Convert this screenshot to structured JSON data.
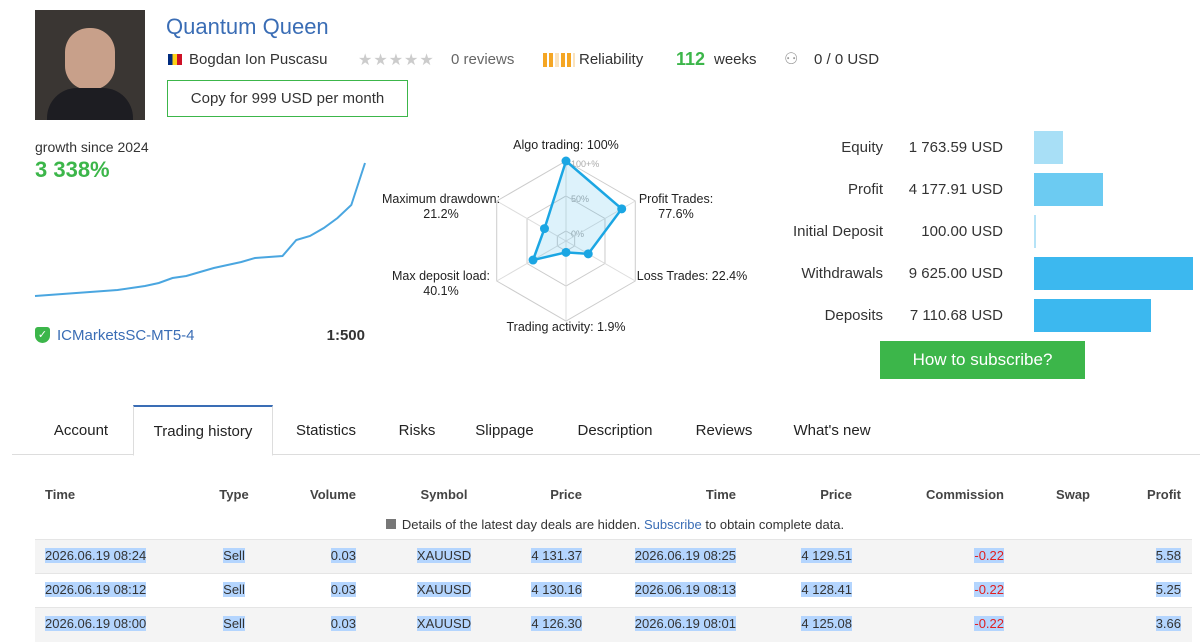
{
  "header": {
    "title": "Quantum Queen",
    "author": "Bogdan Ion Puscasu",
    "reviews": "0 reviews",
    "reliability": "Reliability",
    "weeks_value": "112",
    "weeks_label": "weeks",
    "subscribers": "0 / 0 USD",
    "copy_button": "Copy for 999 USD per month"
  },
  "growth": {
    "label": "growth since 2024",
    "value": "3 338%",
    "curve": [
      0,
      25,
      50,
      75,
      100,
      125,
      150,
      200,
      251,
      326,
      452,
      502,
      602,
      703,
      778,
      853,
      954,
      979,
      1004,
      1406,
      1506,
      1707,
      1958,
      2284,
      3338
    ],
    "server": "ICMarketsSC-MT5-4",
    "leverage": "1:500"
  },
  "radar": {
    "rings": [
      {
        "value": 0,
        "label": "0%"
      },
      {
        "value": 50,
        "label": "50%"
      },
      {
        "value": 100,
        "label": "100+%"
      }
    ],
    "axes": [
      {
        "label": "Algo trading: 100%",
        "value": 100
      },
      {
        "label": "Profit Trades: 77.6%",
        "value": 77.6
      },
      {
        "label": "Loss Trades: 22.4%",
        "value": 22.4
      },
      {
        "label": "Trading activity: 1.9%",
        "value": 1.9
      },
      {
        "label": "Max deposit load: 40.1%",
        "value": 40.1
      },
      {
        "label": "Maximum drawdown: 21.2%",
        "value": 21.2
      }
    ]
  },
  "balance": {
    "items": [
      {
        "label": "Equity",
        "value": 1763.59,
        "value_label": "1 763.59 USD"
      },
      {
        "label": "Profit",
        "value": 4177.91,
        "value_label": "4 177.91 USD"
      },
      {
        "label": "Initial Deposit",
        "value": 100,
        "value_label": "100.00 USD"
      },
      {
        "label": "Withdrawals",
        "value": 9625,
        "value_label": "9 625.00 USD"
      },
      {
        "label": "Deposits",
        "value": 7110.68,
        "value_label": "7 110.68 USD"
      }
    ],
    "button": "How to subscribe?"
  },
  "tabs": {
    "items": [
      "Account",
      "Trading history",
      "Statistics",
      "Risks",
      "Slippage",
      "Description",
      "Reviews",
      "What's new"
    ],
    "active": 1
  },
  "table": {
    "headers": [
      "Time",
      "Type",
      "Volume",
      "Symbol",
      "Price",
      "Time",
      "Price",
      "Commission",
      "Swap",
      "Profit"
    ],
    "notice": {
      "before": "Details of the latest day deals are hidden.",
      "link": "Subscribe",
      "after": "to obtain complete data."
    },
    "rows": [
      [
        "2026.06.19 08:24",
        "Sell",
        "0.03",
        "XAUUSD",
        "4 131.37",
        "2026.06.19 08:25",
        "4 129.51",
        "-0.22",
        null,
        "5.58"
      ],
      [
        "2026.06.19 08:12",
        "Sell",
        "0.03",
        "XAUUSD",
        "4 130.16",
        "2026.06.19 08:13",
        "4 128.41",
        "-0.22",
        null,
        "5.25"
      ],
      [
        "2026.06.19 08:00",
        "Sell",
        "0.03",
        "XAUUSD",
        "4 126.30",
        "2026.06.19 08:01",
        "4 125.08",
        "-0.22",
        null,
        "3.66"
      ]
    ]
  }
}
